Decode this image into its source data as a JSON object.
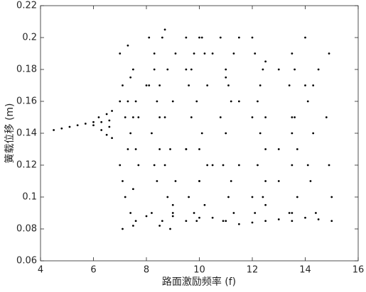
{
  "chart_data": {
    "type": "scatter",
    "xlabel": "路面激励频率 (f)",
    "ylabel": "簧载位移 (m)",
    "color": "#000000",
    "xlim": [
      4,
      16
    ],
    "xticks": [
      4,
      6,
      8,
      10,
      12,
      14,
      16
    ],
    "ylim": [
      0.06,
      0.22
    ],
    "yticks": [
      0.06,
      0.08,
      0.1,
      0.12,
      0.14,
      0.16,
      0.18,
      0.2,
      0.22
    ],
    "x": [
      4.5,
      4.8,
      5.1,
      5.4,
      5.7,
      6.0,
      6.3,
      6.6,
      6.0,
      6.2,
      6.3,
      6.5,
      6.5,
      6.7,
      6.7,
      6.6,
      7.0,
      7.1,
      7.2,
      7.3,
      7.1,
      7.4,
      7.5,
      7.6,
      7.7,
      7.2,
      7.4,
      7.6,
      7.0,
      7.3,
      7.5,
      7.7,
      7.1,
      7.4,
      7.6,
      7.3,
      8.1,
      8.3,
      8.5,
      8.7,
      8.9,
      9.1,
      8.2,
      8.4,
      8.6,
      8.8,
      9.0,
      8.2,
      8.4,
      8.6,
      8.8,
      9.0,
      8.3,
      8.7,
      9.1,
      8.5,
      8.9,
      8.1,
      9.5,
      9.7,
      9.9,
      10.1,
      10.3,
      9.6,
      9.8,
      10.0,
      10.2,
      9.5,
      9.7,
      9.9,
      10.1,
      10.3,
      9.6,
      10.0,
      10.2,
      9.8,
      10.8,
      11.0,
      11.2,
      10.9,
      11.1,
      11.3,
      10.8,
      11.0,
      11.2,
      11.3,
      10.9,
      11.1,
      12.1,
      12.3,
      12.5,
      12.2,
      12.4,
      12.1,
      12.3,
      12.5,
      12.2,
      12.4,
      13.4,
      13.6,
      13.5,
      13.7,
      13.4,
      13.6,
      13.5,
      13.7,
      14.1,
      14.3,
      14.2,
      14.4,
      14.1,
      14.3,
      14.9,
      14.9,
      15.0,
      14.8,
      7.5,
      8.0,
      8.5,
      9.0,
      9.5,
      10.0,
      10.5,
      11.0,
      11.5,
      12.0,
      12.5,
      13.0,
      13.5,
      14.0,
      14.5,
      15.0,
      7.0,
      7.5,
      8.0,
      8.3,
      8.5,
      8.7,
      9.0,
      9.5,
      10.0,
      10.5,
      11.0,
      11.5,
      12.0,
      12.5,
      13.0,
      13.5,
      11.5,
      12.0,
      12.5,
      13.0,
      13.5,
      14.0,
      11.5,
      12.0,
      12.5,
      13.0,
      13.5,
      14.0,
      14.5,
      10.5,
      10.0,
      9.5
    ],
    "values": [
      0.142,
      0.143,
      0.144,
      0.145,
      0.146,
      0.147,
      0.147,
      0.148,
      0.145,
      0.15,
      0.142,
      0.152,
      0.139,
      0.137,
      0.154,
      0.144,
      0.19,
      0.17,
      0.15,
      0.13,
      0.11,
      0.09,
      0.18,
      0.16,
      0.12,
      0.1,
      0.14,
      0.085,
      0.12,
      0.195,
      0.105,
      0.15,
      0.08,
      0.175,
      0.13,
      0.16,
      0.2,
      0.19,
      0.17,
      0.15,
      0.13,
      0.11,
      0.09,
      0.11,
      0.2,
      0.18,
      0.16,
      0.14,
      0.16,
      0.085,
      0.1,
      0.09,
      0.12,
      0.205,
      0.19,
      0.13,
      0.08,
      0.17,
      0.2,
      0.18,
      0.16,
      0.14,
      0.12,
      0.1,
      0.09,
      0.11,
      0.19,
      0.13,
      0.15,
      0.085,
      0.2,
      0.17,
      0.17,
      0.13,
      0.095,
      0.19,
      0.2,
      0.18,
      0.16,
      0.12,
      0.1,
      0.09,
      0.15,
      0.14,
      0.11,
      0.19,
      0.085,
      0.17,
      0.19,
      0.17,
      0.15,
      0.12,
      0.1,
      0.09,
      0.14,
      0.11,
      0.16,
      0.18,
      0.17,
      0.15,
      0.12,
      0.1,
      0.09,
      0.18,
      0.14,
      0.13,
      0.16,
      0.14,
      0.11,
      0.09,
      0.12,
      0.17,
      0.19,
      0.12,
      0.1,
      0.15,
      0.082,
      0.088,
      0.082,
      0.088,
      0.085,
      0.087,
      0.087,
      0.085,
      0.083,
      0.084,
      0.085,
      0.086,
      0.085,
      0.087,
      0.086,
      0.085,
      0.16,
      0.15,
      0.17,
      0.18,
      0.15,
      0.12,
      0.095,
      0.18,
      0.2,
      0.19,
      0.175,
      0.16,
      0.15,
      0.13,
      0.11,
      0.09,
      0.2,
      0.2,
      0.185,
      0.18,
      0.19,
      0.2,
      0.12,
      0.1,
      0.095,
      0.13,
      0.15,
      0.17,
      0.18,
      0.12,
      0.11,
      0.13
    ]
  }
}
